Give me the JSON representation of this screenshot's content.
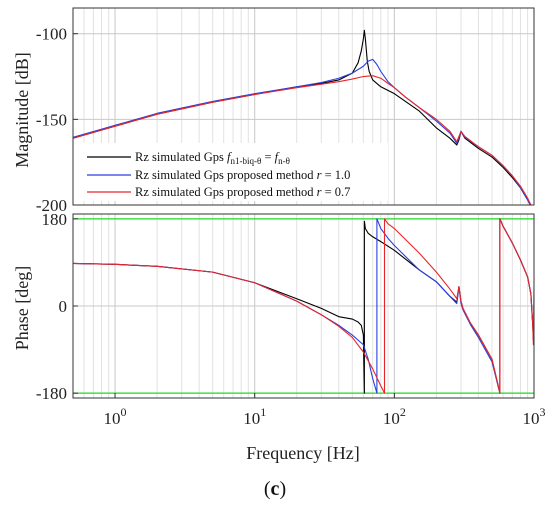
{
  "caption": {
    "open": "(",
    "label": "c",
    "close": ")"
  },
  "chart_data": [
    {
      "type": "line",
      "panel": "magnitude",
      "ylabel": "Magnitude [dB]",
      "xscale": "log",
      "xlim": [
        0.5,
        1000
      ],
      "ylim": [
        -200,
        -85
      ],
      "yticks": [
        -100,
        -150,
        -200
      ],
      "ytick_labels": [
        "-100",
        "-150",
        "-200"
      ],
      "grid": true,
      "legend_position": "bottom-left",
      "series": [
        {
          "name": "Rz simulated Gps",
          "legend": {
            "prefix": "Rz simulated Gps ",
            "lhs": "f",
            "lhs_sub": "n1-biq-θ",
            "eq": " = ",
            "rhs": "f",
            "rhs_sub": "n-θ"
          },
          "color": "#000000",
          "x": [
            0.5,
            1,
            2,
            5,
            10,
            20,
            30,
            40,
            50,
            55,
            58,
            60,
            61,
            62,
            64,
            66,
            70,
            80,
            100,
            150,
            200,
            250,
            280,
            290,
            300,
            320,
            400,
            500,
            600,
            700,
            800,
            900,
            950,
            1000
          ],
          "y": [
            -161,
            -154,
            -147,
            -140,
            -135.5,
            -131,
            -129,
            -127,
            -123,
            -117,
            -110,
            -103,
            -98,
            -103,
            -116,
            -122,
            -127,
            -131,
            -135,
            -145,
            -155,
            -161,
            -165,
            -162,
            -157,
            -161,
            -167,
            -172,
            -178,
            -184,
            -190,
            -197,
            -200,
            -205
          ]
        },
        {
          "name": "Rz simulated Gps proposed method",
          "legend": {
            "prefix": "Rz simulated Gps proposed method ",
            "param": "r",
            "value": " = 1.0"
          },
          "color": "#2a3fe0",
          "x": [
            0.5,
            1,
            2,
            5,
            10,
            20,
            30,
            40,
            50,
            60,
            65,
            70,
            75,
            80,
            90,
            100,
            120,
            150,
            200,
            250,
            280,
            290,
            300,
            320,
            400,
            500,
            600,
            700,
            800,
            900,
            950,
            1000
          ],
          "y": [
            -160.5,
            -153.5,
            -146.5,
            -139.5,
            -135,
            -131,
            -128.5,
            -126,
            -123,
            -119,
            -116,
            -115,
            -118,
            -122,
            -128,
            -131.5,
            -137,
            -143,
            -151,
            -158,
            -164,
            -161,
            -157,
            -160.5,
            -166,
            -171,
            -177,
            -183,
            -190,
            -197,
            -201,
            -206
          ]
        },
        {
          "name": "Rz simulated Gps proposed method",
          "legend": {
            "prefix": "Rz simulated Gps proposed method ",
            "param": "r",
            "value": " = 0.7"
          },
          "color": "#e8262a",
          "x": [
            0.5,
            1,
            2,
            5,
            10,
            20,
            30,
            40,
            50,
            60,
            70,
            80,
            90,
            100,
            120,
            150,
            200,
            250,
            280,
            290,
            300,
            320,
            400,
            500,
            600,
            700,
            800,
            900,
            950,
            1000
          ],
          "y": [
            -161,
            -154,
            -147,
            -140,
            -135.5,
            -131.5,
            -129.5,
            -128,
            -126.5,
            -125,
            -124.5,
            -126,
            -129,
            -131.5,
            -137,
            -143,
            -150,
            -157,
            -163,
            -160,
            -157,
            -160,
            -166,
            -171,
            -177,
            -183,
            -189,
            -196,
            -200,
            -206
          ]
        }
      ]
    },
    {
      "type": "line",
      "panel": "phase",
      "xlabel": "Frequency [Hz]",
      "ylabel": "Phase [deg]",
      "xscale": "log",
      "xlim": [
        0.5,
        1000
      ],
      "ylim": [
        -190,
        190
      ],
      "yticks": [
        180,
        0,
        -180
      ],
      "ytick_labels": [
        "180",
        "0",
        "-180"
      ],
      "xticks": [
        1,
        10,
        100,
        1000
      ],
      "xtick_labels": [
        {
          "base": "10",
          "exp": "0"
        },
        {
          "base": "10",
          "exp": "1"
        },
        {
          "base": "10",
          "exp": "2"
        },
        {
          "base": "10",
          "exp": "3"
        }
      ],
      "reference_lines": [
        {
          "y": 180,
          "color": "#22dd22"
        },
        {
          "y": -180,
          "color": "#22dd22"
        }
      ],
      "grid": true,
      "series": [
        {
          "name": "Rz simulated Gps",
          "color": "#000000",
          "x": [
            0.5,
            1,
            2,
            5,
            10,
            20,
            30,
            40,
            50,
            55,
            58,
            60,
            61,
            61.01,
            62,
            65,
            70,
            80,
            100,
            150,
            200,
            250,
            280,
            290,
            300,
            310,
            350,
            400,
            500,
            560,
            570,
            570.01,
            600,
            700,
            800,
            900,
            950,
            980,
            990,
            1000
          ],
          "y": [
            88,
            86,
            82,
            70,
            48,
            15,
            -5,
            -22,
            -27,
            -33,
            -40,
            -60,
            -180,
            175,
            160,
            150,
            143,
            133,
            115,
            75,
            50,
            20,
            8,
            40,
            10,
            -5,
            -35,
            -60,
            -110,
            -170,
            -180,
            180,
            165,
            130,
            95,
            60,
            25,
            -40,
            -70,
            -60
          ]
        },
        {
          "name": "Rz simulated Gps proposed method",
          "color": "#2a3fe0",
          "x": [
            0.5,
            1,
            2,
            5,
            10,
            20,
            30,
            40,
            50,
            60,
            65,
            70,
            75,
            75.01,
            80,
            90,
            100,
            150,
            200,
            250,
            280,
            290,
            300,
            310,
            350,
            400,
            500,
            560,
            570,
            570.01,
            600,
            700,
            800,
            900,
            950,
            980,
            990,
            1000
          ],
          "y": [
            88,
            86,
            82,
            70,
            48,
            10,
            -18,
            -40,
            -60,
            -80,
            -110,
            -150,
            -180,
            180,
            160,
            140,
            125,
            75,
            50,
            20,
            5,
            40,
            5,
            -8,
            -38,
            -65,
            -115,
            -172,
            -180,
            180,
            165,
            130,
            95,
            60,
            25,
            -40,
            -70,
            -40
          ]
        },
        {
          "name": "Rz simulated Gps proposed method",
          "color": "#e8262a",
          "x": [
            0.5,
            1,
            2,
            5,
            10,
            20,
            30,
            40,
            50,
            60,
            70,
            80,
            85,
            85.01,
            90,
            100,
            150,
            200,
            250,
            280,
            290,
            300,
            310,
            350,
            400,
            500,
            560,
            570,
            570.01,
            600,
            700,
            800,
            900,
            950,
            980,
            990,
            1000
          ],
          "y": [
            88,
            86,
            82,
            70,
            48,
            10,
            -18,
            -42,
            -65,
            -95,
            -130,
            -165,
            -180,
            180,
            170,
            160,
            110,
            70,
            35,
            15,
            40,
            10,
            -5,
            -35,
            -60,
            -110,
            -170,
            -180,
            180,
            165,
            130,
            95,
            60,
            25,
            -40,
            -80,
            40
          ]
        }
      ]
    }
  ]
}
